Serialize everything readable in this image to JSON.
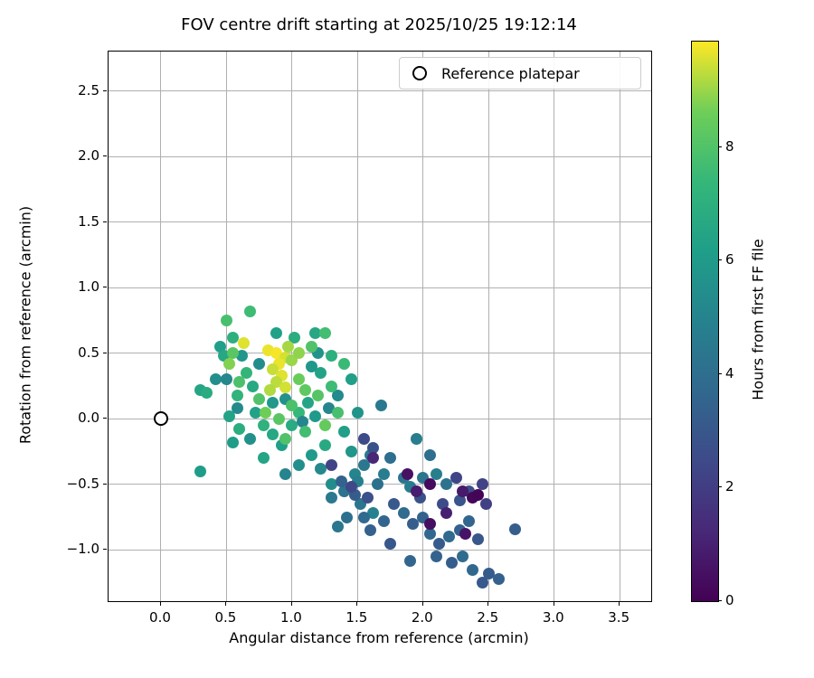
{
  "chart_data": {
    "type": "scatter",
    "title": "FOV centre drift starting at 2025/10/25 19:12:14",
    "xlabel": "Angular distance from reference (arcmin)",
    "ylabel": "Rotation from reference (arcmin)",
    "xlim": [
      -0.4,
      3.74
    ],
    "ylim": [
      -1.39,
      2.8
    ],
    "xticks": [
      0.0,
      0.5,
      1.0,
      1.5,
      2.0,
      2.5,
      3.0,
      3.5
    ],
    "xtick_labels": [
      "0.0",
      "0.5",
      "1.0",
      "1.5",
      "2.0",
      "2.5",
      "3.0",
      "3.5"
    ],
    "yticks": [
      -1.0,
      -0.5,
      0.0,
      0.5,
      1.0,
      1.5,
      2.0,
      2.5
    ],
    "ytick_labels": [
      "−1.0",
      "−0.5",
      "0.0",
      "0.5",
      "1.0",
      "1.5",
      "2.0",
      "2.5"
    ],
    "grid": true,
    "legend": {
      "label": "Reference platepar",
      "position": "upper right",
      "marker": "open-circle"
    },
    "reference_point": {
      "x": 0.0,
      "y": 0.0
    },
    "colorbar": {
      "label": "Hours from first FF file",
      "vmin": 0,
      "vmax": 9.86,
      "ticks": [
        0,
        2,
        4,
        6,
        8
      ],
      "tick_labels": [
        "0",
        "2",
        "4",
        "6",
        "8"
      ],
      "colormap": "viridis",
      "stops": [
        [
          0.0,
          "#440154"
        ],
        [
          0.125,
          "#482878"
        ],
        [
          0.25,
          "#3e4a89"
        ],
        [
          0.375,
          "#31688e"
        ],
        [
          0.5,
          "#26828e"
        ],
        [
          0.625,
          "#1f9e89"
        ],
        [
          0.75,
          "#35b779"
        ],
        [
          0.875,
          "#6ece58"
        ],
        [
          1.0,
          "#fde725"
        ]
      ]
    },
    "points": [
      [
        0.3,
        0.22,
        6.5
      ],
      [
        0.35,
        0.2,
        6.8
      ],
      [
        0.45,
        0.55,
        6.2
      ],
      [
        0.55,
        0.62,
        7.0
      ],
      [
        0.48,
        0.48,
        6.6
      ],
      [
        0.58,
        0.18,
        7.2
      ],
      [
        0.52,
        0.02,
        6.4
      ],
      [
        0.6,
        -0.08,
        6.9
      ],
      [
        0.55,
        -0.18,
        6.1
      ],
      [
        0.65,
        0.35,
        7.3
      ],
      [
        0.7,
        0.25,
        6.7
      ],
      [
        0.72,
        0.05,
        6.3
      ],
      [
        0.78,
        -0.05,
        7.1
      ],
      [
        0.85,
        -0.12,
        6.6
      ],
      [
        0.92,
        -0.2,
        6.2
      ],
      [
        1.0,
        -0.05,
        6.8
      ],
      [
        1.05,
        0.05,
        7.4
      ],
      [
        1.12,
        0.12,
        6.5
      ],
      [
        1.18,
        0.02,
        6.0
      ],
      [
        1.22,
        0.35,
        6.4
      ],
      [
        1.3,
        0.48,
        7.0
      ],
      [
        1.45,
        0.3,
        6.2
      ],
      [
        1.18,
        0.65,
        6.6
      ],
      [
        1.02,
        0.62,
        6.9
      ],
      [
        0.88,
        0.65,
        6.3
      ],
      [
        0.3,
        -0.4,
        6.1
      ],
      [
        0.78,
        -0.3,
        6.5
      ],
      [
        1.15,
        -0.28,
        6.0
      ],
      [
        1.25,
        -0.2,
        6.7
      ],
      [
        1.4,
        -0.1,
        6.2
      ],
      [
        0.42,
        0.3,
        5.5
      ],
      [
        0.5,
        0.3,
        5.2
      ],
      [
        0.62,
        0.48,
        5.8
      ],
      [
        0.75,
        0.42,
        5.4
      ],
      [
        0.95,
        0.15,
        5.6
      ],
      [
        1.08,
        -0.02,
        5.1
      ],
      [
        1.15,
        0.4,
        5.9
      ],
      [
        1.35,
        0.18,
        5.3
      ],
      [
        1.5,
        0.05,
        5.7
      ],
      [
        1.22,
        -0.38,
        5.2
      ],
      [
        1.05,
        -0.35,
        5.5
      ],
      [
        0.95,
        -0.42,
        5.0
      ],
      [
        1.3,
        -0.5,
        5.4
      ],
      [
        1.45,
        -0.25,
        5.8
      ],
      [
        1.28,
        0.08,
        5.1
      ],
      [
        0.68,
        -0.15,
        5.6
      ],
      [
        0.58,
        0.08,
        5.3
      ],
      [
        1.48,
        -0.42,
        5.0
      ],
      [
        1.2,
        0.5,
        5.7
      ],
      [
        0.85,
        0.12,
        5.9
      ],
      [
        0.55,
        0.5,
        8.2
      ],
      [
        0.5,
        0.75,
        7.8
      ],
      [
        0.68,
        0.82,
        7.6
      ],
      [
        1.15,
        0.55,
        8.0
      ],
      [
        1.25,
        0.65,
        7.7
      ],
      [
        1.05,
        0.3,
        8.5
      ],
      [
        1.1,
        0.22,
        8.3
      ],
      [
        0.75,
        0.15,
        8.0
      ],
      [
        0.8,
        0.05,
        8.6
      ],
      [
        0.9,
        0.0,
        8.2
      ],
      [
        1.0,
        0.1,
        7.9
      ],
      [
        1.2,
        0.18,
        8.1
      ],
      [
        1.3,
        0.25,
        7.6
      ],
      [
        1.35,
        0.05,
        7.8
      ],
      [
        1.25,
        -0.05,
        8.4
      ],
      [
        1.1,
        -0.1,
        7.7
      ],
      [
        0.95,
        -0.15,
        8.0
      ],
      [
        1.4,
        0.42,
        7.5
      ],
      [
        0.6,
        0.28,
        7.9
      ],
      [
        0.52,
        0.42,
        8.8
      ],
      [
        0.63,
        0.58,
        9.6
      ],
      [
        0.82,
        0.52,
        9.7
      ],
      [
        0.88,
        0.5,
        9.8
      ],
      [
        0.95,
        0.47,
        9.5
      ],
      [
        0.9,
        0.42,
        9.7
      ],
      [
        0.85,
        0.38,
        9.4
      ],
      [
        0.92,
        0.33,
        9.6
      ],
      [
        0.88,
        0.28,
        9.3
      ],
      [
        0.95,
        0.24,
        9.5
      ],
      [
        0.83,
        0.22,
        9.2
      ],
      [
        1.0,
        0.45,
        9.0
      ],
      [
        0.97,
        0.55,
        9.1
      ],
      [
        1.05,
        0.5,
        8.9
      ],
      [
        1.3,
        -0.6,
        4.5
      ],
      [
        1.4,
        -0.55,
        4.2
      ],
      [
        1.5,
        -0.48,
        4.8
      ],
      [
        1.55,
        -0.35,
        4.4
      ],
      [
        1.6,
        -0.28,
        4.6
      ],
      [
        1.65,
        -0.5,
        4.1
      ],
      [
        1.7,
        -0.42,
        4.7
      ],
      [
        1.52,
        -0.65,
        4.3
      ],
      [
        1.62,
        -0.72,
        4.9
      ],
      [
        1.75,
        -0.3,
        4.0
      ],
      [
        1.68,
        0.1,
        4.5
      ],
      [
        1.85,
        -0.45,
        4.2
      ],
      [
        1.9,
        -0.52,
        4.6
      ],
      [
        2.0,
        -0.45,
        4.3
      ],
      [
        2.1,
        -0.42,
        4.8
      ],
      [
        1.42,
        -0.75,
        4.1
      ],
      [
        1.35,
        -0.82,
        4.4
      ],
      [
        2.05,
        -0.28,
        4.0
      ],
      [
        1.95,
        -0.15,
        4.7
      ],
      [
        2.18,
        -0.5,
        4.2
      ],
      [
        1.38,
        -0.48,
        3.5
      ],
      [
        1.48,
        -0.58,
        3.2
      ],
      [
        1.55,
        -0.75,
        3.8
      ],
      [
        1.6,
        -0.85,
        3.4
      ],
      [
        1.7,
        -0.78,
        3.6
      ],
      [
        1.78,
        -0.65,
        3.1
      ],
      [
        1.85,
        -0.72,
        3.9
      ],
      [
        1.92,
        -0.8,
        3.3
      ],
      [
        2.0,
        -0.75,
        3.5
      ],
      [
        2.05,
        -0.88,
        3.7
      ],
      [
        2.12,
        -0.95,
        3.2
      ],
      [
        2.2,
        -0.9,
        3.8
      ],
      [
        2.28,
        -0.85,
        3.4
      ],
      [
        2.35,
        -0.78,
        3.6
      ],
      [
        2.42,
        -0.92,
        3.0
      ],
      [
        2.3,
        -1.05,
        3.9
      ],
      [
        2.22,
        -1.1,
        3.3
      ],
      [
        2.1,
        -1.05,
        3.5
      ],
      [
        2.38,
        -1.15,
        3.7
      ],
      [
        2.5,
        -1.18,
        3.2
      ],
      [
        2.58,
        -1.22,
        3.4
      ],
      [
        2.45,
        -1.25,
        3.1
      ],
      [
        1.9,
        -1.08,
        3.6
      ],
      [
        1.75,
        -0.95,
        3.0
      ],
      [
        2.7,
        -0.84,
        3.3
      ],
      [
        1.55,
        -0.15,
        2.5
      ],
      [
        1.62,
        -0.22,
        2.8
      ],
      [
        2.25,
        -0.45,
        2.3
      ],
      [
        2.35,
        -0.55,
        2.6
      ],
      [
        2.45,
        -0.5,
        2.2
      ],
      [
        2.28,
        -0.62,
        2.9
      ],
      [
        1.45,
        -0.52,
        2.4
      ],
      [
        1.58,
        -0.6,
        2.7
      ],
      [
        2.48,
        -0.65,
        2.1
      ],
      [
        2.15,
        -0.65,
        2.5
      ],
      [
        1.98,
        -0.6,
        2.8
      ],
      [
        1.3,
        -0.35,
        2.2
      ],
      [
        1.88,
        -0.42,
        0.5
      ],
      [
        2.05,
        -0.5,
        0.3
      ],
      [
        2.3,
        -0.55,
        0.8
      ],
      [
        2.38,
        -0.6,
        0.2
      ],
      [
        2.18,
        -0.72,
        1.0
      ],
      [
        2.32,
        -0.88,
        0.6
      ],
      [
        1.62,
        -0.3,
        1.2
      ],
      [
        2.05,
        -0.8,
        0.4
      ],
      [
        2.42,
        -0.58,
        0.1
      ],
      [
        1.95,
        -0.55,
        0.9
      ]
    ]
  }
}
